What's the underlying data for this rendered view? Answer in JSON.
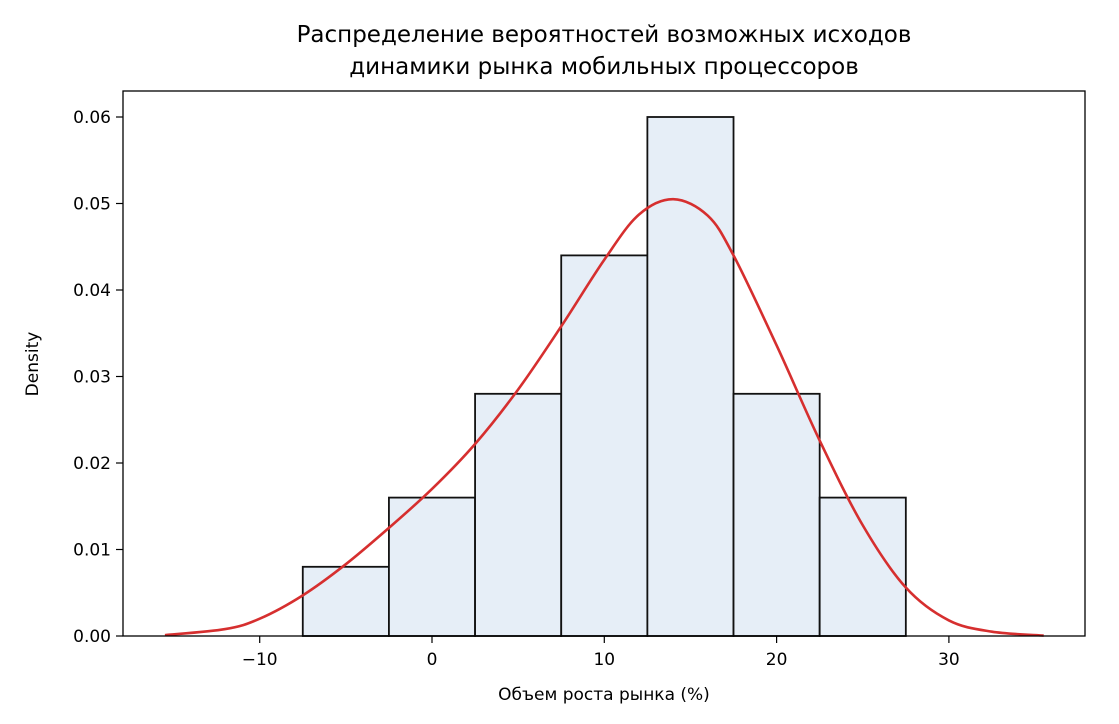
{
  "chart_data": {
    "type": "bar",
    "subtype": "histogram_with_kde",
    "title": "Распределение вероятностей возможных исходов\nдинамики рынка мобильных процессоров",
    "title_lines": [
      "Распределение вероятностей возможных исходов",
      "динамики рынка мобильных процессоров"
    ],
    "xlabel": "Объем роста рынка (%)",
    "ylabel": "Density",
    "xlim": [
      -17.9,
      37.9
    ],
    "ylim": [
      0,
      0.063
    ],
    "grid": false,
    "legend": null,
    "x_ticks": [
      -10,
      0,
      10,
      20,
      30
    ],
    "x_tick_labels": [
      "−10",
      "0",
      "10",
      "20",
      "30"
    ],
    "y_ticks": [
      0.0,
      0.01,
      0.02,
      0.03,
      0.04,
      0.05,
      0.06
    ],
    "y_tick_labels": [
      "0.00",
      "0.01",
      "0.02",
      "0.03",
      "0.04",
      "0.05",
      "0.06"
    ],
    "bin_edges": [
      -7.5,
      -2.5,
      2.5,
      7.5,
      12.5,
      17.5,
      22.5,
      27.5
    ],
    "categories": [
      "-7.5–-2.5",
      "-2.5–2.5",
      "2.5–7.5",
      "7.5–12.5",
      "12.5–17.5",
      "17.5–22.5",
      "22.5–27.5"
    ],
    "values": [
      0.008,
      0.016,
      0.028,
      0.044,
      0.06,
      0.028,
      0.016
    ],
    "series": [
      {
        "name": "histogram",
        "type": "bar",
        "values": [
          0.008,
          0.016,
          0.028,
          0.044,
          0.06,
          0.028,
          0.016
        ],
        "color": "#e6eef7",
        "edgecolor": "#111111"
      },
      {
        "name": "KDE",
        "type": "line",
        "color": "#d62f2f",
        "x": [
          -15.5,
          -12,
          -10,
          -7.5,
          -5,
          -2.5,
          0,
          2.5,
          5,
          7.5,
          10,
          12,
          14,
          16,
          17.5,
          20,
          22.5,
          25,
          27.5,
          30,
          32.5,
          35.5
        ],
        "y": [
          0.0001,
          0.0008,
          0.002,
          0.0047,
          0.0083,
          0.0125,
          0.017,
          0.0222,
          0.0285,
          0.0358,
          0.0435,
          0.0487,
          0.0505,
          0.0486,
          0.044,
          0.0336,
          0.0226,
          0.0128,
          0.0056,
          0.0018,
          0.0005,
          5e-05
        ]
      }
    ]
  },
  "colors": {
    "bar_fill": "#e6eef7",
    "bar_edge": "#111111",
    "kde_line": "#d62f2f",
    "axes": "#000000"
  }
}
